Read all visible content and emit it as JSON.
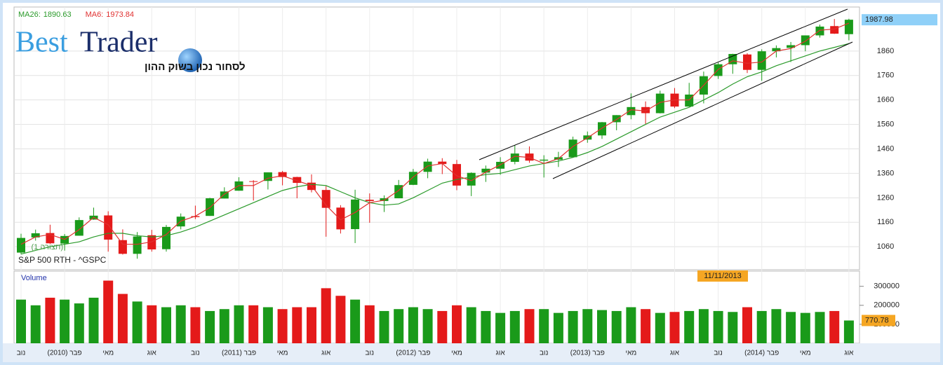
{
  "chart_data": {
    "type": "candlestick",
    "symbol": "S&P 500 RTH - ^GSPC",
    "config_label": "(תצורה 1)",
    "indicators": [
      {
        "label": "MA26:",
        "value": 1890.63,
        "color": "#2a9a2a"
      },
      {
        "label": "MA6:",
        "value": 1973.84,
        "color": "#e03030"
      }
    ],
    "logo": {
      "word1": "Best",
      "word2": "Trader",
      "tagline": "לסחור נכון בשוק ההון"
    },
    "categories": [
      "נוב",
      null,
      null,
      "(2010) פבר",
      null,
      null,
      "מאי",
      null,
      null,
      "אוג",
      null,
      null,
      "נוב",
      null,
      null,
      "(2011) פבר",
      null,
      null,
      "מאי",
      null,
      null,
      "אוג",
      null,
      null,
      "נוב",
      null,
      null,
      "(2012) פבר",
      null,
      null,
      "מאי",
      null,
      null,
      "אוג",
      null,
      null,
      "נוב",
      null,
      null,
      "(2013) פבר",
      null,
      null,
      "מאי",
      null,
      null,
      "אוג",
      null,
      null,
      "נוב",
      null,
      null,
      "(2014) פבר",
      null,
      null,
      "מאי",
      null,
      null,
      "אוג"
    ],
    "open": [
      1036,
      1098,
      1116,
      1073,
      1105,
      1171,
      1188,
      1087,
      1031,
      1107,
      1050,
      1143,
      1185,
      1186,
      1257,
      1289,
      1328,
      1329,
      1365,
      1345,
      1322,
      1292,
      1220,
      1132,
      1252,
      1247,
      1258,
      1313,
      1366,
      1408,
      1398,
      1310,
      1363,
      1379,
      1407,
      1441,
      1412,
      1416,
      1426,
      1498,
      1515,
      1569,
      1598,
      1631,
      1606,
      1686,
      1633,
      1682,
      1758,
      1806,
      1846,
      1783,
      1859,
      1873,
      1884,
      1924,
      1962,
      1929
    ],
    "high": [
      1113,
      1130,
      1150,
      1112,
      1180,
      1220,
      1205,
      1131,
      1120,
      1129,
      1149,
      1196,
      1228,
      1260,
      1303,
      1344,
      1332,
      1364,
      1370,
      1346,
      1356,
      1308,
      1230,
      1293,
      1278,
      1270,
      1333,
      1378,
      1420,
      1422,
      1415,
      1364,
      1392,
      1426,
      1475,
      1470,
      1434,
      1448,
      1510,
      1531,
      1570,
      1598,
      1687,
      1654,
      1698,
      1709,
      1730,
      1776,
      1813,
      1849,
      1851,
      1867,
      1883,
      1897,
      1924,
      1968,
      1991,
      1992
    ],
    "low": [
      1029,
      1085,
      1071,
      1044,
      1105,
      1170,
      1040,
      1028,
      1011,
      1040,
      1040,
      1131,
      1173,
      1186,
      1257,
      1289,
      1249,
      1294,
      1311,
      1258,
      1282,
      1101,
      1114,
      1075,
      1158,
      1202,
      1258,
      1312,
      1340,
      1357,
      1291,
      1267,
      1325,
      1354,
      1397,
      1403,
      1343,
      1386,
      1426,
      1485,
      1501,
      1536,
      1581,
      1560,
      1605,
      1627,
      1633,
      1646,
      1746,
      1767,
      1770,
      1738,
      1834,
      1815,
      1859,
      1915,
      1930,
      1904
    ],
    "close": [
      1096,
      1115,
      1074,
      1104,
      1169,
      1187,
      1089,
      1031,
      1102,
      1049,
      1141,
      1183,
      1181,
      1258,
      1286,
      1327,
      1326,
      1364,
      1345,
      1321,
      1292,
      1219,
      1131,
      1253,
      1247,
      1258,
      1312,
      1366,
      1408,
      1398,
      1310,
      1362,
      1379,
      1407,
      1441,
      1412,
      1416,
      1426,
      1498,
      1515,
      1569,
      1598,
      1631,
      1606,
      1686,
      1633,
      1682,
      1757,
      1806,
      1848,
      1783,
      1859,
      1872,
      1884,
      1924,
      1960,
      1931,
      1988
    ],
    "ma6": [
      1070,
      1100,
      1110,
      1090,
      1130,
      1180,
      1150,
      1070,
      1070,
      1080,
      1110,
      1165,
      1185,
      1220,
      1275,
      1310,
      1310,
      1340,
      1350,
      1330,
      1310,
      1230,
      1170,
      1200,
      1240,
      1250,
      1290,
      1345,
      1390,
      1400,
      1350,
      1330,
      1365,
      1395,
      1430,
      1425,
      1400,
      1420,
      1470,
      1505,
      1545,
      1580,
      1620,
      1615,
      1650,
      1660,
      1660,
      1720,
      1785,
      1820,
      1810,
      1815,
      1860,
      1870,
      1900,
      1945,
      1950,
      1973.84
    ],
    "ma26": [
      1030,
      1045,
      1060,
      1070,
      1080,
      1100,
      1115,
      1115,
      1105,
      1100,
      1105,
      1120,
      1140,
      1165,
      1190,
      1215,
      1240,
      1265,
      1290,
      1305,
      1315,
      1310,
      1285,
      1260,
      1240,
      1230,
      1235,
      1260,
      1290,
      1320,
      1335,
      1345,
      1355,
      1360,
      1375,
      1390,
      1400,
      1410,
      1425,
      1445,
      1470,
      1500,
      1530,
      1560,
      1590,
      1610,
      1630,
      1660,
      1690,
      1725,
      1755,
      1775,
      1800,
      1820,
      1840,
      1860,
      1875,
      1890.63
    ],
    "up_color": "#1a9a1a",
    "down_color": "#e41a1a",
    "ylim": [
      966,
      2040
    ],
    "yticks": [
      1060,
      1160,
      1260,
      1360,
      1460,
      1560,
      1660,
      1760,
      1860
    ],
    "last_price": 1987.98,
    "date_marker": "11/11/2013",
    "volume_title": "Volume",
    "volume": [
      230000,
      200000,
      240000,
      230000,
      210000,
      240000,
      330000,
      260000,
      220000,
      200000,
      190000,
      200000,
      190000,
      170000,
      180000,
      200000,
      200000,
      190000,
      180000,
      190000,
      190000,
      290000,
      250000,
      230000,
      200000,
      170000,
      180000,
      190000,
      180000,
      170000,
      200000,
      190000,
      170000,
      160000,
      170000,
      180000,
      180000,
      160000,
      170000,
      180000,
      175000,
      170000,
      190000,
      180000,
      160000,
      165000,
      170000,
      180000,
      170000,
      165000,
      190000,
      170000,
      180000,
      165000,
      160000,
      165000,
      170000,
      120000
    ],
    "volume_ylim": [
      0,
      380000
    ],
    "volume_yticks": [
      100000,
      200000,
      300000
    ],
    "last_volume": 770.78,
    "grid": true
  }
}
